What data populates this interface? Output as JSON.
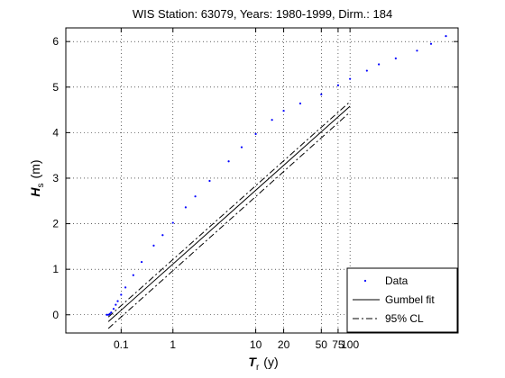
{
  "chart_data": {
    "type": "scatter",
    "title": "WIS Station: 63079, Years: 1980-1999, Dirm.: 184",
    "xlabel_main": "T",
    "xlabel_sub": "r",
    "xlabel_unit": "(y)",
    "ylabel_main": "H",
    "ylabel_sub": "s",
    "ylabel_unit": "(m)",
    "x_scale": "gumbel-reduced-variate",
    "xlim_reduced": [
      -2.2,
      7.2
    ],
    "ylim": [
      -0.4,
      6.3
    ],
    "grid": true,
    "grid_style": "dotted",
    "x_tick_labels": [
      "0.1",
      "1",
      "10",
      "20",
      "50",
      "75",
      "100"
    ],
    "x_tick_values": [
      0.1,
      1,
      10,
      20,
      50,
      75,
      100
    ],
    "y_tick_labels": [
      "0",
      "1",
      "2",
      "3",
      "4",
      "5",
      "6"
    ],
    "y_tick_values": [
      0,
      1,
      2,
      3,
      4,
      5,
      6
    ],
    "legend_placement": "bottom-right",
    "series": [
      {
        "name": "Data",
        "style": "dots",
        "color": "#0000ff",
        "x_return_period_y": [
          0.035,
          0.04,
          0.045,
          0.05,
          0.06,
          0.07,
          0.08,
          0.1,
          0.13,
          0.2,
          0.3,
          0.5,
          0.7,
          1,
          1.5,
          2,
          3,
          5,
          7,
          10,
          15,
          20,
          30,
          50,
          75,
          100,
          150,
          200,
          300,
          500,
          700,
          1000
        ],
        "y": [
          0.0,
          0.0,
          0.02,
          0.05,
          0.13,
          0.22,
          0.3,
          0.44,
          0.6,
          0.87,
          1.16,
          1.52,
          1.75,
          2.02,
          2.36,
          2.6,
          2.94,
          3.37,
          3.68,
          3.97,
          4.28,
          4.48,
          4.64,
          4.84,
          5.04,
          5.18,
          5.36,
          5.5,
          5.63,
          5.8,
          5.95,
          6.12
        ]
      },
      {
        "name": "Gumbel fit",
        "style": "solid",
        "color": "#000000",
        "x_return_period_y": [
          0.04,
          100
        ],
        "y": [
          -0.15,
          4.58
        ]
      },
      {
        "name": "95% CL",
        "style": "dashdot",
        "color": "#000000",
        "x_return_period_y": [
          0.04,
          100
        ],
        "y": [
          -0.05,
          4.68
        ]
      },
      {
        "name": "95% CL",
        "style": "dashdot",
        "color": "#000000",
        "x_return_period_y": [
          0.04,
          100
        ],
        "y": [
          -0.3,
          4.45
        ]
      }
    ]
  },
  "legend": {
    "items": [
      {
        "label": "Data",
        "style": "dots"
      },
      {
        "label": "Gumbel fit",
        "style": "solid"
      },
      {
        "label": "95% CL",
        "style": "dashdot"
      }
    ]
  }
}
